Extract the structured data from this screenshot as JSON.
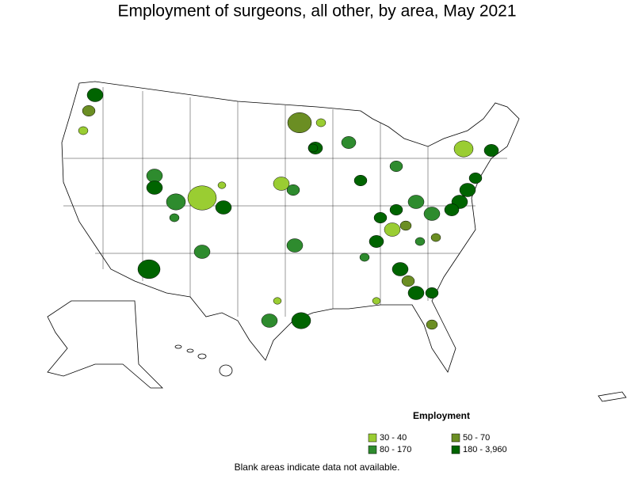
{
  "title": "Employment of surgeons, all other, by area, May 2021",
  "legend": {
    "title": "Employment",
    "items": [
      {
        "label": "30 - 40",
        "color": "#9acd32"
      },
      {
        "label": "50 - 70",
        "color": "#6b8e23"
      },
      {
        "label": "80 - 170",
        "color": "#2e8b2e"
      },
      {
        "label": "180 - 3,960",
        "color": "#006400"
      }
    ]
  },
  "footnote": "Blank areas indicate data not available."
}
